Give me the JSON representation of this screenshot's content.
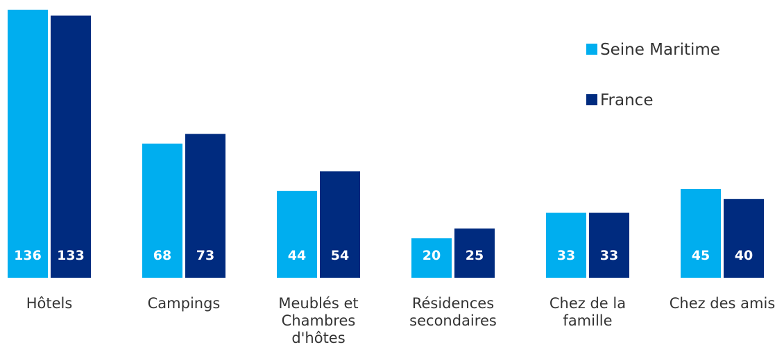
{
  "chart_data": {
    "type": "bar",
    "categories": [
      [
        "Hôtels"
      ],
      [
        "Campings"
      ],
      [
        "Meublés et",
        "Chambres",
        "d'hôtes"
      ],
      [
        "Résidences",
        "secondaires"
      ],
      [
        "Chez de la",
        "famille"
      ],
      [
        "Chez des amis"
      ]
    ],
    "series": [
      {
        "name": "Seine Maritime",
        "color": "#00AEEF",
        "values": [
          136,
          68,
          44,
          20,
          33,
          45
        ]
      },
      {
        "name": "France",
        "color": "#002B7F",
        "values": [
          133,
          73,
          54,
          25,
          33,
          40
        ]
      }
    ],
    "title": "",
    "xlabel": "",
    "ylabel": "",
    "ylim": [
      0,
      136
    ],
    "grid": false,
    "legend": "top-right",
    "value_labels": "inside-bottom"
  }
}
